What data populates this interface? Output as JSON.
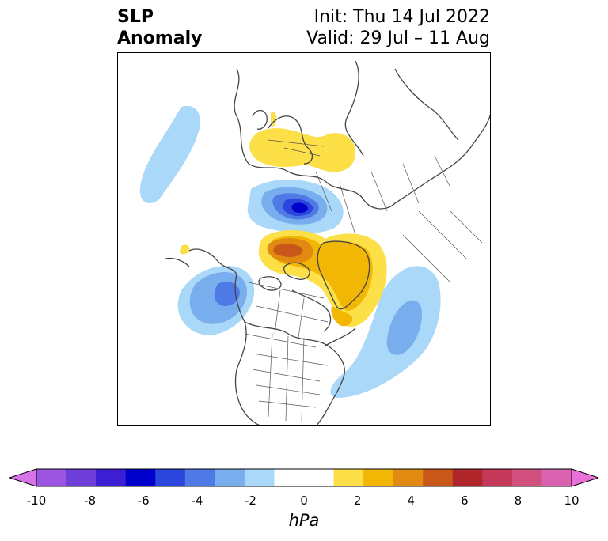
{
  "title": {
    "left_line1": "SLP",
    "left_line2": "Anomaly",
    "right_line1": "Init: Thu 14 Jul 2022",
    "right_line2": "Valid: 29 Jul – 11 Aug"
  },
  "colorbar": {
    "units": "hPa",
    "ticks": [
      "-10",
      "-8",
      "-6",
      "-4",
      "-2",
      "0",
      "2",
      "4",
      "6",
      "8",
      "10"
    ],
    "extend_low_color": "#d872e8",
    "extend_high_color": "#e870d8",
    "bins": [
      "#9b55e0",
      "#6e3ed8",
      "#3c1ed4",
      "#0000cc",
      "#2a46dc",
      "#4f7ae6",
      "#78aeee",
      "#aad8f8",
      "#ffffff",
      "#ffffff",
      "#fde047",
      "#f2b705",
      "#e08a12",
      "#c8581a",
      "#b0262a",
      "#c4385a",
      "#d2507e",
      "#da62b0"
    ]
  },
  "map": {
    "projection": "north polar stereographic",
    "anomaly_features": [
      {
        "region": "northern Europe / Scandinavia",
        "sign": "positive",
        "peak_hpa": 2
      },
      {
        "region": "Barents / Kara Sea",
        "sign": "negative",
        "peak_hpa": -6
      },
      {
        "region": "Canadian Arctic / Greenland",
        "sign": "positive",
        "peak_hpa": 6
      },
      {
        "region": "Gulf of Alaska / NE Pacific",
        "sign": "negative",
        "peak_hpa": -4
      },
      {
        "region": "North Atlantic",
        "sign": "negative",
        "peak_hpa": -3
      },
      {
        "region": "North Pacific",
        "sign": "negative",
        "peak_hpa": -2
      }
    ]
  }
}
